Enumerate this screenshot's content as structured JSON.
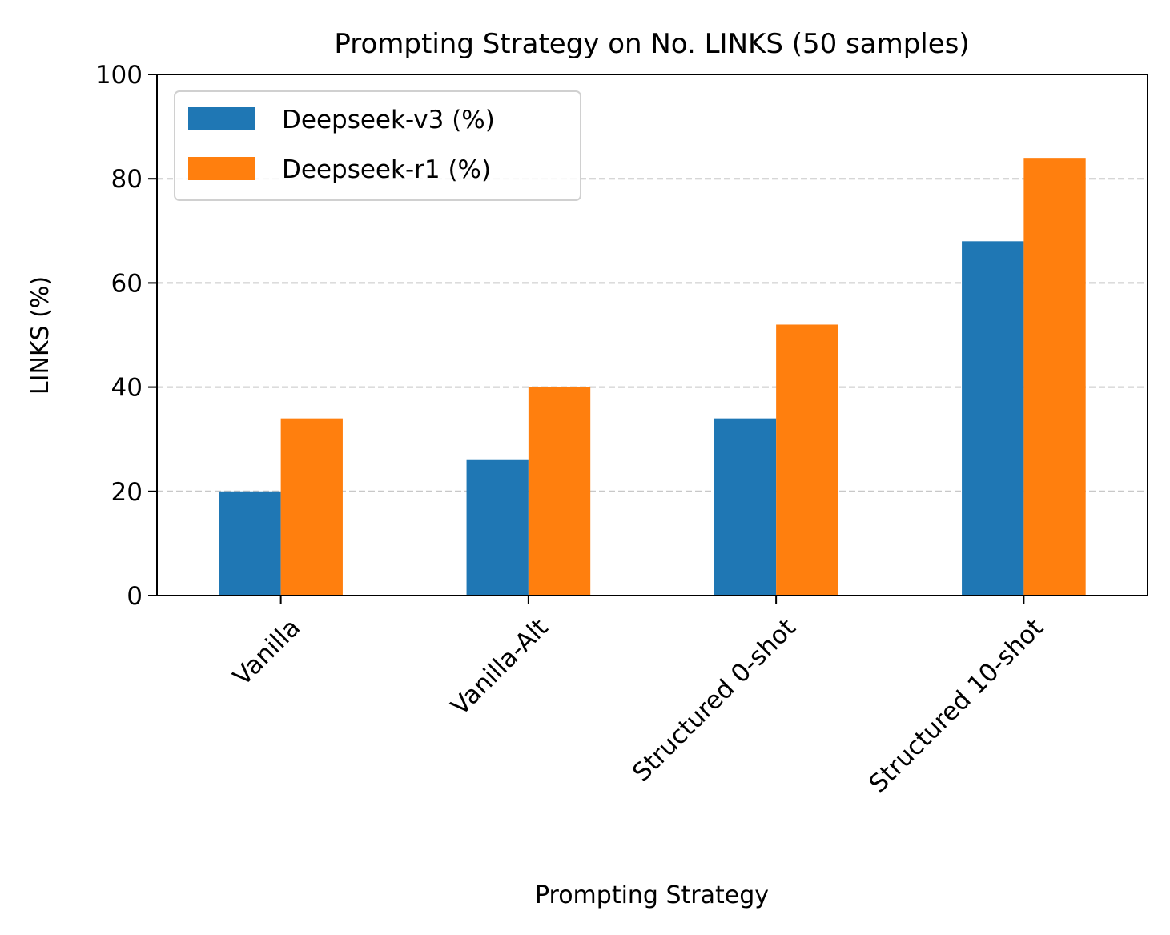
{
  "chart_data": {
    "type": "bar",
    "title": "Prompting Strategy on No. LINKS (50 samples)",
    "xlabel": "Prompting Strategy",
    "ylabel": "LINKS (%)",
    "ylim": [
      0,
      100
    ],
    "yticks": [
      0,
      20,
      40,
      60,
      80,
      100
    ],
    "categories": [
      "Vanilla",
      "Vanilla-Alt",
      "Structured 0-shot",
      "Structured 10-shot"
    ],
    "series": [
      {
        "name": "Deepseek-v3 (%)",
        "color": "#1f77b4",
        "values": [
          20,
          26,
          34,
          68
        ]
      },
      {
        "name": "Deepseek-r1 (%)",
        "color": "#ff7f0e",
        "values": [
          34,
          40,
          52,
          84
        ]
      }
    ],
    "grid": "y-dashed",
    "legend": "top-left"
  }
}
